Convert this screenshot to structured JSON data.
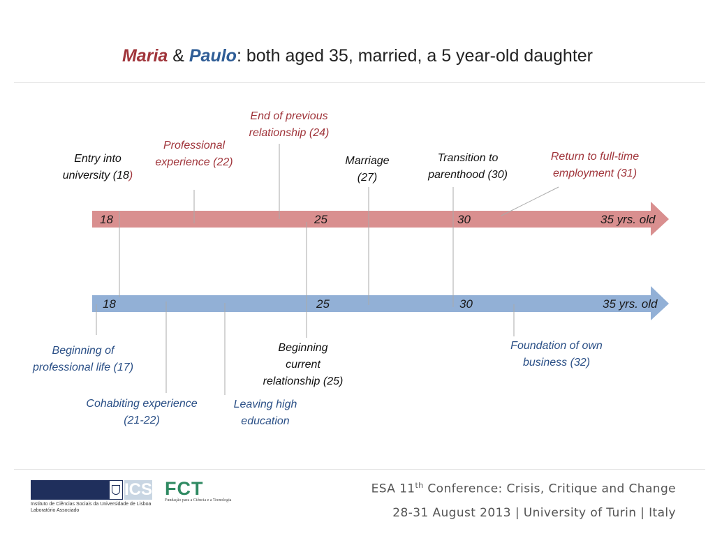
{
  "title": {
    "name1": "Maria",
    "amp": " & ",
    "name2": "Paulo",
    "rest": ": both aged 35, married, a 5 year-old daughter"
  },
  "timelines": {
    "maria": {
      "color": "#d98f8f",
      "ticks": {
        "t18": "18",
        "t25": "25",
        "t30": "30",
        "t35": "35 yrs. old"
      }
    },
    "paulo": {
      "color": "#92b0d6",
      "ticks": {
        "t18": "18",
        "t25": "25",
        "t30": "30",
        "t35": "35 yrs. old"
      }
    }
  },
  "maria_events": {
    "university": {
      "line1": "Entry into",
      "line2a": "university (18",
      "line2b": ")"
    },
    "professional": {
      "line1": "Professional",
      "line2": "experience (22)"
    },
    "end_relationship": {
      "line1": "End of previous",
      "line2": "relationship (24)"
    },
    "marriage": {
      "line1": "Marriage",
      "line2": "(27)"
    },
    "parenthood": {
      "line1": "Transition to",
      "line2": "parenthood (30)"
    },
    "return_work": {
      "line1": "Return to full-time",
      "line2": "employment (31)"
    }
  },
  "paulo_events": {
    "professional_life": {
      "line1": "Beginning of",
      "line2": "professional life (17)"
    },
    "cohabiting": {
      "line1": "Cohabiting experience",
      "line2": "(21-22)"
    },
    "leaving_education": {
      "line1": "Leaving high",
      "line2": "education"
    },
    "current_relationship": {
      "line1": "Beginning",
      "line2": "current",
      "line3": "relationship (25)"
    },
    "business": {
      "line1": "Foundation of  own",
      "line2": "business (32)"
    }
  },
  "footer": {
    "conf_pre": "ESA 11",
    "conf_sup": "th",
    "conf_post": " Conference: Crisis, Critique and Change",
    "place": "28-31 August 2013 | University of Turin | Italy"
  },
  "logos": {
    "ics_text": "ICS",
    "ics_caption1": "Instituto de Ciências Sociais da Universidade de Lisboa",
    "ics_caption2": "Laboratório Associado",
    "fct_text": "FCT",
    "fct_caption": "Fundação para a Ciência e a Tecnologia"
  }
}
